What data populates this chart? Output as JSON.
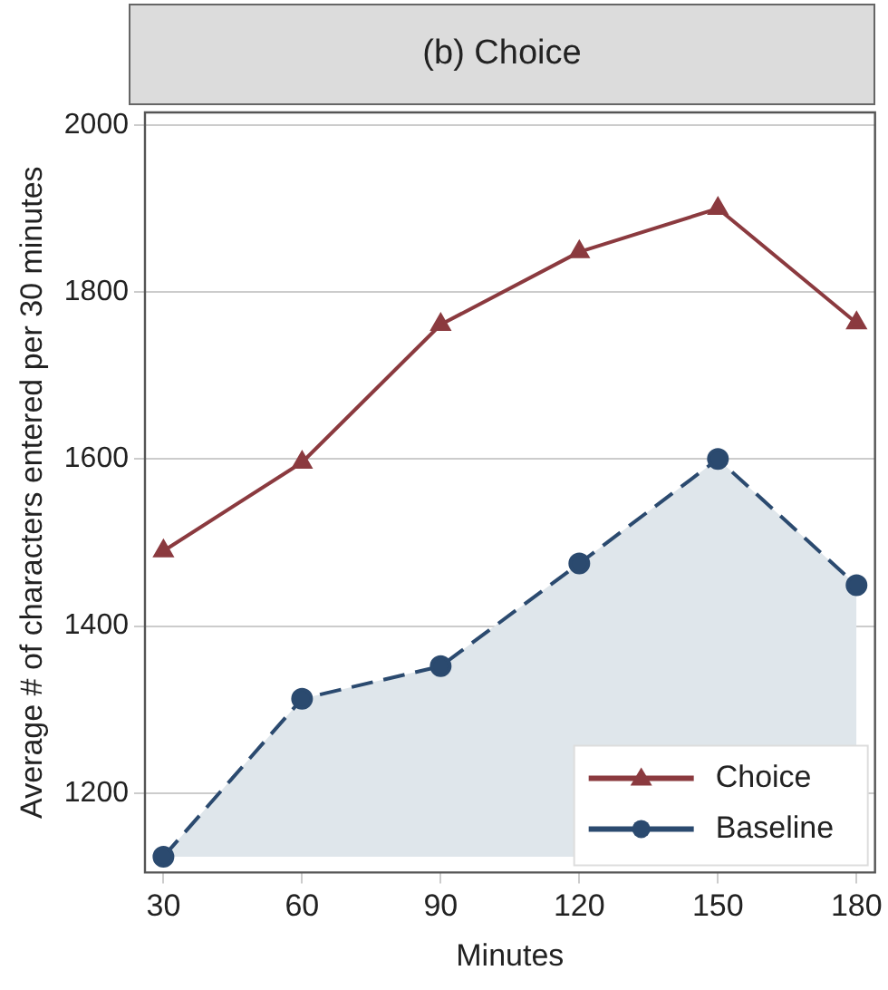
{
  "chart_data": {
    "type": "line",
    "title": "(b) Choice",
    "xlabel": "Minutes",
    "ylabel": "Average # of characters entered per 30 minutes",
    "x": [
      30,
      60,
      90,
      120,
      150,
      180
    ],
    "series": [
      {
        "name": "Choice",
        "type": "line",
        "color": "#8b3a3f",
        "marker": "triangle",
        "line_style": "solid",
        "values": [
          1490,
          1596,
          1761,
          1848,
          1900,
          1763
        ]
      },
      {
        "name": "Baseline",
        "type": "area",
        "color": "#2b4a6f",
        "marker": "circle",
        "line_style": "dashed",
        "values": [
          1124,
          1313,
          1352,
          1475,
          1600,
          1449
        ]
      }
    ],
    "xlim": [
      26,
      184
    ],
    "xticks": [
      30,
      60,
      90,
      120,
      150,
      180
    ],
    "ylim": [
      1105,
      2015
    ],
    "yticks": [
      1200,
      1400,
      1600,
      1800,
      2000
    ],
    "grid": "y",
    "legend": "bottom right"
  }
}
